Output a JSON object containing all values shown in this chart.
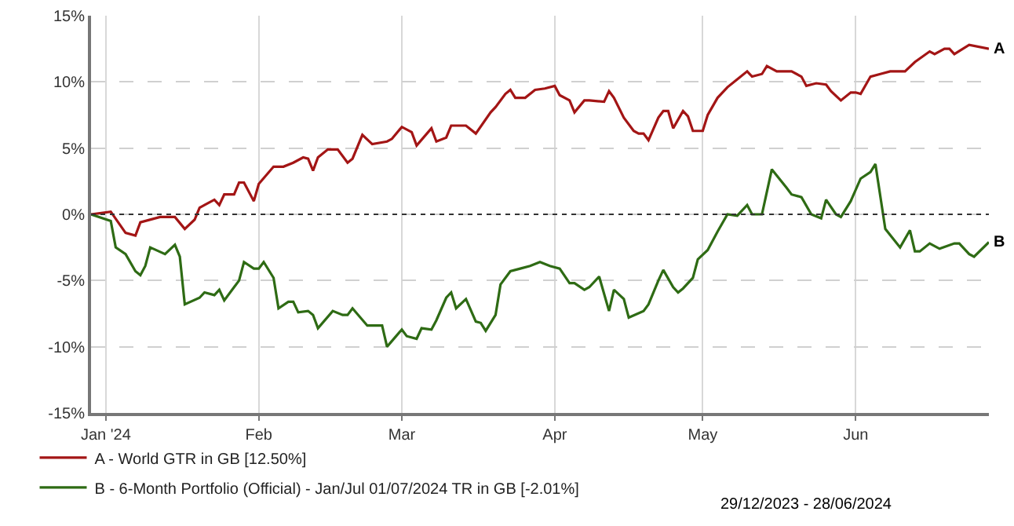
{
  "chart_data": {
    "type": "line",
    "xlim": [
      "2023-12-29",
      "2024-06-28"
    ],
    "xticks": [
      {
        "value": "2024-01-01",
        "label": "Jan '24"
      },
      {
        "value": "2024-02-01",
        "label": "Feb"
      },
      {
        "value": "2024-03-01",
        "label": "Mar"
      },
      {
        "value": "2024-04-01",
        "label": "Apr"
      },
      {
        "value": "2024-05-01",
        "label": "May"
      },
      {
        "value": "2024-06-01",
        "label": "Jun"
      }
    ],
    "ylim": [
      -15,
      15
    ],
    "yticks": [
      {
        "value": 15,
        "label": "15%"
      },
      {
        "value": 10,
        "label": "10%"
      },
      {
        "value": 5,
        "label": "5%"
      },
      {
        "value": 0,
        "label": "0%"
      },
      {
        "value": -5,
        "label": "-5%"
      },
      {
        "value": -10,
        "label": "-10%"
      },
      {
        "value": -15,
        "label": "-15%"
      }
    ],
    "grid": true,
    "legend": "bottom left",
    "marker": "none",
    "line_style": "solid",
    "ref_lines": [
      {
        "axis": "y",
        "value": 0,
        "color": "#333333",
        "line_style": "dotted"
      }
    ],
    "series": [
      {
        "name": "A - World GTR in GB [12.50%]",
        "color": "#a31515",
        "x": [
          "2023-12-29",
          "2024-01-02",
          "2024-01-05",
          "2024-01-07",
          "2024-01-08",
          "2024-01-12",
          "2024-01-15",
          "2024-01-17",
          "2024-01-19",
          "2024-01-20",
          "2024-01-21",
          "2024-01-23",
          "2024-01-24",
          "2024-01-25",
          "2024-01-27",
          "2024-01-28",
          "2024-01-29",
          "2024-01-31",
          "2024-02-01",
          "2024-02-04",
          "2024-02-06",
          "2024-02-08",
          "2024-02-10",
          "2024-02-11",
          "2024-02-12",
          "2024-02-13",
          "2024-02-15",
          "2024-02-17",
          "2024-02-19",
          "2024-02-20",
          "2024-02-22",
          "2024-02-24",
          "2024-02-27",
          "2024-02-28",
          "2024-03-01",
          "2024-03-03",
          "2024-03-04",
          "2024-03-07",
          "2024-03-08",
          "2024-03-10",
          "2024-03-11",
          "2024-03-14",
          "2024-03-16",
          "2024-03-19",
          "2024-03-20",
          "2024-03-22",
          "2024-03-23",
          "2024-03-24",
          "2024-03-26",
          "2024-03-28",
          "2024-03-30",
          "2024-04-01",
          "2024-04-02",
          "2024-04-04",
          "2024-04-05",
          "2024-04-07",
          "2024-04-08",
          "2024-04-11",
          "2024-04-12",
          "2024-04-13",
          "2024-04-15",
          "2024-04-17",
          "2024-04-18",
          "2024-04-19",
          "2024-04-20",
          "2024-04-22",
          "2024-04-23",
          "2024-04-24",
          "2024-04-25",
          "2024-04-27",
          "2024-04-28",
          "2024-04-29",
          "2024-05-01",
          "2024-05-02",
          "2024-05-04",
          "2024-05-06",
          "2024-05-08",
          "2024-05-10",
          "2024-05-11",
          "2024-05-13",
          "2024-05-14",
          "2024-05-16",
          "2024-05-19",
          "2024-05-21",
          "2024-05-22",
          "2024-05-24",
          "2024-05-26",
          "2024-05-27",
          "2024-05-29",
          "2024-05-31",
          "2024-06-01",
          "2024-06-02",
          "2024-06-04",
          "2024-06-06",
          "2024-06-08",
          "2024-06-11",
          "2024-06-13",
          "2024-06-16",
          "2024-06-17",
          "2024-06-19",
          "2024-06-20",
          "2024-06-21",
          "2024-06-24",
          "2024-06-28"
        ],
        "values": [
          0,
          0.2,
          -1.4,
          -1.6,
          -0.6,
          -0.2,
          -0.2,
          -1.1,
          -0.4,
          0.5,
          0.7,
          1.1,
          0.7,
          1.5,
          1.5,
          2.4,
          2.4,
          1.0,
          2.3,
          3.6,
          3.6,
          3.9,
          4.3,
          4.2,
          3.3,
          4.3,
          4.9,
          4.9,
          3.9,
          4.2,
          6.0,
          5.3,
          5.5,
          5.7,
          6.6,
          6.2,
          5.2,
          6.5,
          5.5,
          5.8,
          6.7,
          6.7,
          6.1,
          7.7,
          8.1,
          9.1,
          9.4,
          8.8,
          8.8,
          9.4,
          9.5,
          9.7,
          9.0,
          8.6,
          7.7,
          8.6,
          8.6,
          8.5,
          9.3,
          8.8,
          7.3,
          6.3,
          6.1,
          6.1,
          5.6,
          7.3,
          7.8,
          7.8,
          6.5,
          7.8,
          7.4,
          6.3,
          6.3,
          7.5,
          8.8,
          9.6,
          10.2,
          10.8,
          10.4,
          10.6,
          11.2,
          10.8,
          10.8,
          10.4,
          9.7,
          9.9,
          9.8,
          9.3,
          8.6,
          9.2,
          9.2,
          9.1,
          10.4,
          10.6,
          10.8,
          10.8,
          11.5,
          12.3,
          12.1,
          12.5,
          12.5,
          12.1,
          12.8,
          12.5
        ]
      },
      {
        "name": "B - 6-Month Portfolio (Official) - Jan/Jul 01/07/2024 TR in GB [-2.01%]",
        "color": "#2e6b14",
        "x": [
          "2023-12-29",
          "2024-01-02",
          "2024-01-03",
          "2024-01-05",
          "2024-01-07",
          "2024-01-08",
          "2024-01-09",
          "2024-01-10",
          "2024-01-13",
          "2024-01-15",
          "2024-01-16",
          "2024-01-17",
          "2024-01-20",
          "2024-01-21",
          "2024-01-23",
          "2024-01-24",
          "2024-01-25",
          "2024-01-27",
          "2024-01-28",
          "2024-01-29",
          "2024-01-31",
          "2024-02-01",
          "2024-02-02",
          "2024-02-04",
          "2024-02-05",
          "2024-02-07",
          "2024-02-08",
          "2024-02-09",
          "2024-02-11",
          "2024-02-12",
          "2024-02-13",
          "2024-02-16",
          "2024-02-18",
          "2024-02-19",
          "2024-02-20",
          "2024-02-23",
          "2024-02-26",
          "2024-02-27",
          "2024-03-01",
          "2024-03-02",
          "2024-03-04",
          "2024-03-05",
          "2024-03-07",
          "2024-03-08",
          "2024-03-10",
          "2024-03-11",
          "2024-03-12",
          "2024-03-14",
          "2024-03-16",
          "2024-03-17",
          "2024-03-18",
          "2024-03-20",
          "2024-03-21",
          "2024-03-23",
          "2024-03-25",
          "2024-03-27",
          "2024-03-29",
          "2024-03-31",
          "2024-04-02",
          "2024-04-04",
          "2024-04-05",
          "2024-04-07",
          "2024-04-08",
          "2024-04-10",
          "2024-04-12",
          "2024-04-13",
          "2024-04-15",
          "2024-04-16",
          "2024-04-19",
          "2024-04-20",
          "2024-04-22",
          "2024-04-23",
          "2024-04-25",
          "2024-04-26",
          "2024-04-27",
          "2024-04-29",
          "2024-04-30",
          "2024-05-02",
          "2024-05-04",
          "2024-05-06",
          "2024-05-08",
          "2024-05-10",
          "2024-05-11",
          "2024-05-13",
          "2024-05-15",
          "2024-05-18",
          "2024-05-19",
          "2024-05-21",
          "2024-05-23",
          "2024-05-25",
          "2024-05-26",
          "2024-05-28",
          "2024-05-29",
          "2024-05-31",
          "2024-06-02",
          "2024-06-04",
          "2024-06-05",
          "2024-06-07",
          "2024-06-10",
          "2024-06-12",
          "2024-06-13",
          "2024-06-14",
          "2024-06-16",
          "2024-06-18",
          "2024-06-21",
          "2024-06-22",
          "2024-06-24",
          "2024-06-25",
          "2024-06-28"
        ],
        "values": [
          0,
          -0.5,
          -2.5,
          -3.0,
          -4.3,
          -4.6,
          -3.9,
          -2.5,
          -3.0,
          -2.3,
          -3.2,
          -6.8,
          -6.3,
          -5.9,
          -6.1,
          -5.7,
          -6.5,
          -5.5,
          -5.0,
          -3.6,
          -4.1,
          -4.1,
          -3.6,
          -4.8,
          -7.1,
          -6.6,
          -6.6,
          -7.4,
          -7.3,
          -7.6,
          -8.6,
          -7.3,
          -7.6,
          -7.6,
          -7.1,
          -8.4,
          -8.4,
          -10.0,
          -8.7,
          -9.2,
          -9.4,
          -8.6,
          -8.7,
          -8.0,
          -6.3,
          -5.9,
          -7.1,
          -6.4,
          -8.1,
          -8.2,
          -8.8,
          -7.6,
          -5.3,
          -4.3,
          -4.1,
          -3.9,
          -3.6,
          -3.9,
          -4.1,
          -5.2,
          -5.2,
          -5.7,
          -5.5,
          -4.7,
          -7.3,
          -5.7,
          -6.4,
          -7.8,
          -7.3,
          -6.8,
          -5.0,
          -4.2,
          -5.5,
          -5.9,
          -5.6,
          -4.8,
          -3.4,
          -2.7,
          -1.3,
          0,
          -0.1,
          0.7,
          0,
          0,
          3.4,
          2.0,
          1.5,
          1.3,
          0,
          -0.3,
          1.1,
          0,
          -0.2,
          1.0,
          2.7,
          3.2,
          3.8,
          -1.1,
          -2.5,
          -1.2,
          -2.8,
          -2.8,
          -2.2,
          -2.6,
          -2.2,
          -2.2,
          -3.0,
          -3.2,
          -2.1
        ]
      }
    ],
    "annotations": [
      {
        "text": "A",
        "x": "2024-06-28",
        "y": 12.5
      },
      {
        "text": "B",
        "x": "2024-06-28",
        "y": -2.1
      },
      "29/12/2023 - 28/06/2024"
    ]
  }
}
